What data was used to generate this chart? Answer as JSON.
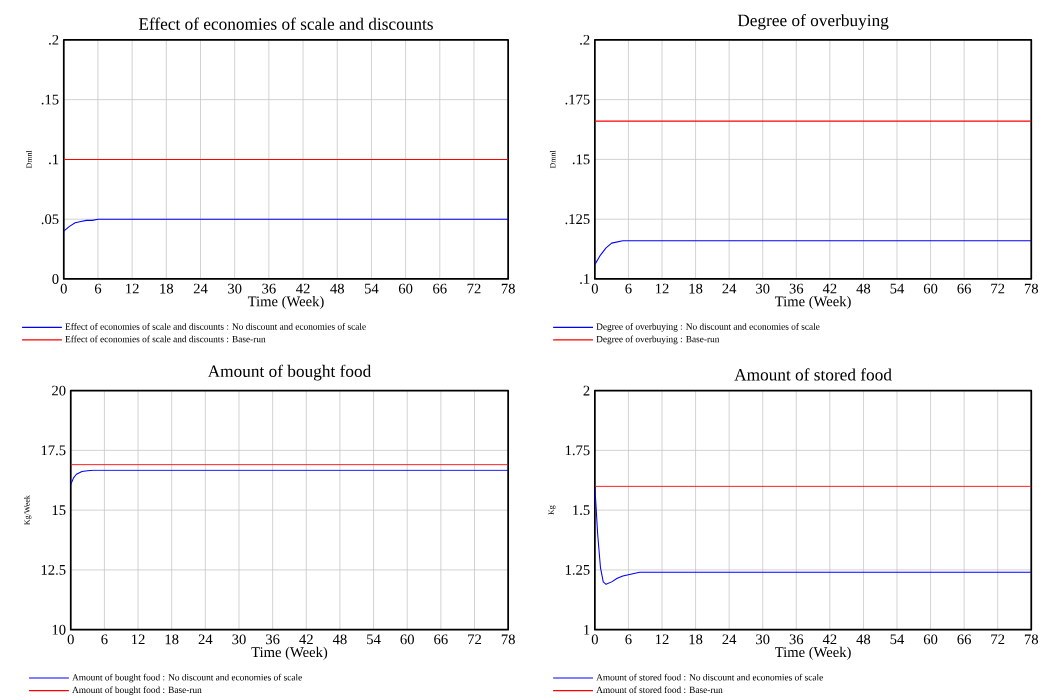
{
  "chart_data": [
    {
      "type": "line",
      "title": "Effect of economies of scale and discounts",
      "xlabel": "Time (Week)",
      "ylabel": "Dmnl",
      "xlim": [
        0,
        78
      ],
      "xticks": [
        0,
        6,
        12,
        18,
        24,
        30,
        36,
        42,
        48,
        54,
        60,
        66,
        72,
        78
      ],
      "ylim": [
        0,
        0.2
      ],
      "yticks": [
        0,
        {
          "value": 0.05,
          "label": ".05"
        },
        {
          "value": 0.1,
          "label": ".1"
        },
        {
          "value": 0.15,
          "label": ".15"
        },
        {
          "value": 0.2,
          "label": ".2"
        }
      ],
      "grid": true,
      "legend": "bottom",
      "series": [
        {
          "name": "Effect of economies of scale and discounts : No discount and economies of scale",
          "color": "#0000ff",
          "x": [
            0,
            1,
            2,
            3,
            4,
            5,
            6,
            78
          ],
          "values": [
            0.04,
            0.044,
            0.047,
            0.048,
            0.049,
            0.049,
            0.05,
            0.05
          ]
        },
        {
          "name": "Effect of economies of scale and discounts : Base-run",
          "color": "#ff0000",
          "x": [
            0,
            78
          ],
          "values": [
            0.1,
            0.1
          ]
        }
      ]
    },
    {
      "type": "line",
      "title": "Degree of overbuying",
      "xlabel": "Time (Week)",
      "ylabel": "Dmnl",
      "xlim": [
        0,
        78
      ],
      "xticks": [
        0,
        6,
        12,
        18,
        24,
        30,
        36,
        42,
        48,
        54,
        60,
        66,
        72,
        78
      ],
      "ylim": [
        0.1,
        0.2
      ],
      "yticks": [
        {
          "value": 0.1,
          "label": ".1"
        },
        {
          "value": 0.125,
          "label": ".125"
        },
        {
          "value": 0.15,
          "label": ".15"
        },
        {
          "value": 0.175,
          "label": ".175"
        },
        {
          "value": 0.2,
          "label": ".2"
        }
      ],
      "grid": true,
      "legend": "bottom",
      "series": [
        {
          "name": "Degree of overbuying : No discount and economies of scale",
          "color": "#0000ff",
          "x": [
            0,
            1,
            2,
            3,
            4,
            5,
            6,
            78
          ],
          "values": [
            0.106,
            0.11,
            0.113,
            0.115,
            0.1155,
            0.116,
            0.116,
            0.116
          ]
        },
        {
          "name": "Degree of overbuying : Base-run",
          "color": "#ff0000",
          "x": [
            0,
            78
          ],
          "values": [
            0.166,
            0.166
          ]
        }
      ]
    },
    {
      "type": "line",
      "title": "Amount of bought food",
      "xlabel": "Time (Week)",
      "ylabel": "Kg/Week",
      "xlim": [
        0,
        78
      ],
      "xticks": [
        0,
        6,
        12,
        18,
        24,
        30,
        36,
        42,
        48,
        54,
        60,
        66,
        72,
        78
      ],
      "ylim": [
        10,
        20
      ],
      "yticks": [
        10,
        12.5,
        15,
        17.5,
        20
      ],
      "grid": true,
      "legend": "bottom",
      "series": [
        {
          "name": "Amount of bought food : No discount and economies of scale",
          "color": "#0000ff",
          "x": [
            0,
            0.5,
            1,
            2,
            3,
            4,
            78
          ],
          "values": [
            16.07,
            16.35,
            16.5,
            16.62,
            16.65,
            16.67,
            16.67
          ]
        },
        {
          "name": "Amount of bought food : Base-run",
          "color": "#ff0000",
          "x": [
            0,
            78
          ],
          "values": [
            16.9,
            16.9
          ]
        }
      ]
    },
    {
      "type": "line",
      "title": "Amount of stored food",
      "xlabel": "Time (Week)",
      "ylabel": "Kg",
      "xlim": [
        0,
        78
      ],
      "xticks": [
        0,
        6,
        12,
        18,
        24,
        30,
        36,
        42,
        48,
        54,
        60,
        66,
        72,
        78
      ],
      "ylim": [
        1,
        2
      ],
      "yticks": [
        1,
        1.25,
        1.5,
        1.75,
        2
      ],
      "grid": true,
      "legend": "bottom",
      "series": [
        {
          "name": "Amount of stored food : No discount and economies of scale",
          "color": "#0000ff",
          "x": [
            0,
            0.5,
            1,
            1.5,
            2,
            3,
            4,
            5,
            6,
            8,
            78
          ],
          "values": [
            1.6,
            1.4,
            1.26,
            1.2,
            1.19,
            1.2,
            1.215,
            1.225,
            1.23,
            1.24,
            1.24
          ]
        },
        {
          "name": "Amount of stored food : Base-run",
          "color": "#ff0000",
          "x": [
            0,
            78
          ],
          "values": [
            1.6,
            1.6
          ]
        }
      ]
    }
  ]
}
